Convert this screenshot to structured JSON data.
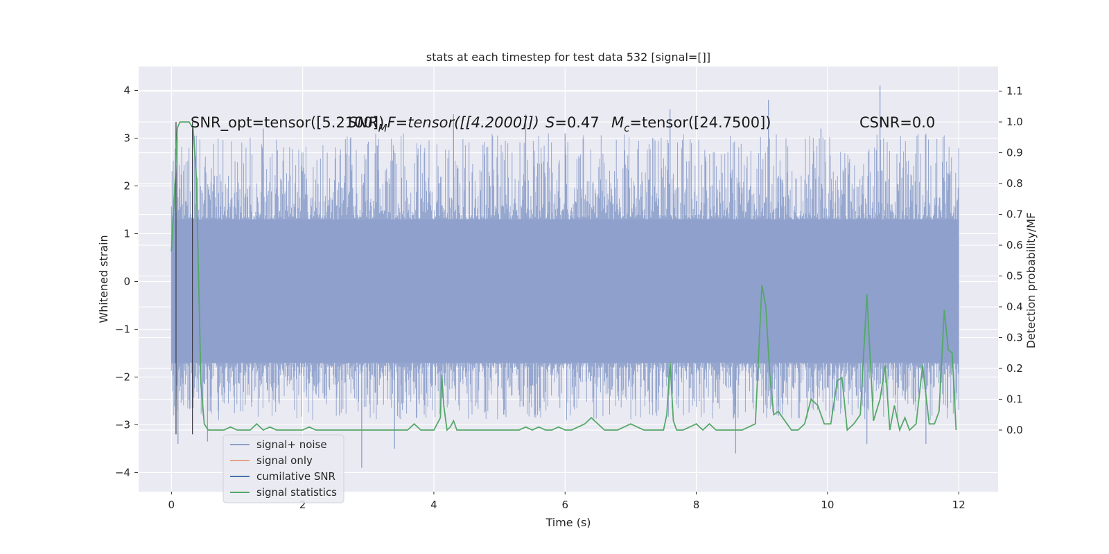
{
  "chart_data": {
    "type": "line",
    "title": "stats at each timestep for test data 532 [signal=[]]",
    "xlabel": "Time (s)",
    "ylabel": "Whitened strain",
    "ylabel_right": "Detection probability/MF",
    "xlim": [
      -0.5,
      12.6
    ],
    "ylim": [
      -4.4,
      4.5
    ],
    "ylim_right": [
      -0.2,
      1.18
    ],
    "x_ticks": [
      0,
      2,
      4,
      6,
      8,
      10,
      12
    ],
    "y_ticks": [
      -4,
      -3,
      -2,
      -1,
      0,
      1,
      2,
      3,
      4
    ],
    "y_ticks_right": [
      0.0,
      0.1,
      0.2,
      0.3,
      0.4,
      0.5,
      0.6,
      0.7,
      0.8,
      0.9,
      1.0,
      1.1
    ],
    "grid": true,
    "legend_position": "lower-left",
    "annotations": {
      "snr_opt": "SNR_opt=tensor([5.2100])",
      "snr_mf_prefix": "SNR",
      "snr_mf_sub": "M",
      "snr_mf_suffix": "F=tensor([[4.2000]])",
      "s_label": "S",
      "s_value": "=0.47",
      "mc_label": "M",
      "mc_sub": "c",
      "mc_value": "=tensor([24.7500])",
      "csnr": "CSNR=0.0"
    },
    "vertical_lines_x": [
      0.07,
      0.32
    ],
    "series": [
      {
        "name": "signal+ noise",
        "color": "#8da0cb",
        "axis": "left",
        "x_range": [
          0,
          12
        ],
        "band_lower": -1.7,
        "band_upper": 1.3,
        "spike_extremes": [
          {
            "x": 0.1,
            "y": -3.4
          },
          {
            "x": 0.55,
            "y": -3.35
          },
          {
            "x": 1.4,
            "y": 3.2
          },
          {
            "x": 2.9,
            "y": -3.9
          },
          {
            "x": 3.4,
            "y": -3.5
          },
          {
            "x": 4.3,
            "y": 3.5
          },
          {
            "x": 5.4,
            "y": 3.5
          },
          {
            "x": 6.0,
            "y": 3.1
          },
          {
            "x": 7.6,
            "y": 3.6
          },
          {
            "x": 8.6,
            "y": -3.6
          },
          {
            "x": 9.1,
            "y": 3.8
          },
          {
            "x": 9.9,
            "y": 3.2
          },
          {
            "x": 10.6,
            "y": -3.4
          },
          {
            "x": 10.8,
            "y": 4.1
          },
          {
            "x": 11.5,
            "y": -3.4
          }
        ]
      },
      {
        "name": "signal only",
        "color": "#e1a48d",
        "axis": "left",
        "x": [],
        "y": []
      },
      {
        "name": "cumilative SNR",
        "color": "#4c72b0",
        "axis": "right",
        "x": [],
        "y": []
      },
      {
        "name": "signal statistics",
        "color": "#55a868",
        "axis": "right",
        "x": [
          0.0,
          0.05,
          0.09,
          0.13,
          0.2,
          0.27,
          0.33,
          0.38,
          0.45,
          0.5,
          0.56,
          0.6,
          0.7,
          0.8,
          0.9,
          1.0,
          1.1,
          1.2,
          1.3,
          1.4,
          1.5,
          1.6,
          1.7,
          1.8,
          1.9,
          2.0,
          2.1,
          2.2,
          2.3,
          2.4,
          2.5,
          2.6,
          2.7,
          2.8,
          2.9,
          3.0,
          3.1,
          3.2,
          3.3,
          3.4,
          3.5,
          3.6,
          3.7,
          3.8,
          3.9,
          4.0,
          4.1,
          4.12,
          4.15,
          4.2,
          4.25,
          4.3,
          4.35,
          4.4,
          4.5,
          4.6,
          4.7,
          4.8,
          4.9,
          5.0,
          5.1,
          5.2,
          5.3,
          5.4,
          5.5,
          5.6,
          5.7,
          5.8,
          5.9,
          6.0,
          6.1,
          6.2,
          6.3,
          6.4,
          6.5,
          6.6,
          6.7,
          6.8,
          6.9,
          7.0,
          7.1,
          7.2,
          7.3,
          7.4,
          7.5,
          7.55,
          7.6,
          7.65,
          7.7,
          7.8,
          7.9,
          8.0,
          8.1,
          8.2,
          8.3,
          8.4,
          8.5,
          8.6,
          8.7,
          8.8,
          8.9,
          9.0,
          9.06,
          9.12,
          9.18,
          9.25,
          9.35,
          9.45,
          9.55,
          9.65,
          9.75,
          9.85,
          9.95,
          10.05,
          10.15,
          10.22,
          10.3,
          10.4,
          10.5,
          10.6,
          10.7,
          10.8,
          10.88,
          10.95,
          11.02,
          11.1,
          11.18,
          11.25,
          11.35,
          11.45,
          11.55,
          11.63,
          11.7,
          11.78,
          11.84,
          11.9,
          11.96
        ],
        "y": [
          0.58,
          0.78,
          0.98,
          1.0,
          1.0,
          1.0,
          0.98,
          0.82,
          0.15,
          0.02,
          0.0,
          0.0,
          0.0,
          0.0,
          0.01,
          0.0,
          0.0,
          0.0,
          0.02,
          0.0,
          0.01,
          0.0,
          0.0,
          0.0,
          0.0,
          0.0,
          0.01,
          0.0,
          0.0,
          0.0,
          0.0,
          0.0,
          0.0,
          0.0,
          0.0,
          0.0,
          0.0,
          0.0,
          0.0,
          0.0,
          0.0,
          0.0,
          0.02,
          0.0,
          0.0,
          0.0,
          0.04,
          0.18,
          0.08,
          0.0,
          0.01,
          0.03,
          0.0,
          0.0,
          0.0,
          0.0,
          0.0,
          0.0,
          0.0,
          0.0,
          0.0,
          0.0,
          0.0,
          0.01,
          0.0,
          0.01,
          0.0,
          0.0,
          0.01,
          0.0,
          0.0,
          0.01,
          0.02,
          0.04,
          0.02,
          0.0,
          0.0,
          0.0,
          0.01,
          0.02,
          0.01,
          0.0,
          0.0,
          0.0,
          0.0,
          0.05,
          0.22,
          0.03,
          0.0,
          0.0,
          0.01,
          0.02,
          0.0,
          0.02,
          0.0,
          0.0,
          0.0,
          0.0,
          0.0,
          0.01,
          0.02,
          0.47,
          0.4,
          0.18,
          0.05,
          0.06,
          0.03,
          0.0,
          0.0,
          0.02,
          0.1,
          0.08,
          0.02,
          0.02,
          0.16,
          0.17,
          0.0,
          0.02,
          0.05,
          0.44,
          0.03,
          0.1,
          0.21,
          0.0,
          0.08,
          0.0,
          0.04,
          0.0,
          0.02,
          0.21,
          0.02,
          0.02,
          0.06,
          0.39,
          0.26,
          0.25,
          0.0
        ]
      }
    ]
  }
}
